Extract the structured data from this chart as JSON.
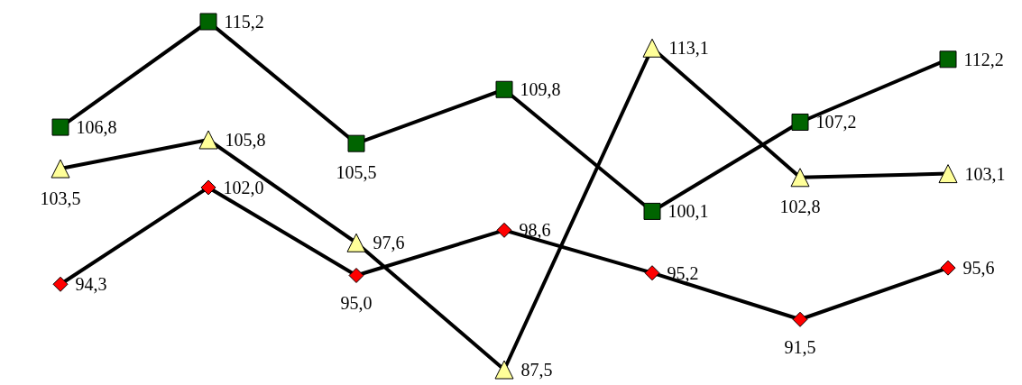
{
  "chart_data": {
    "type": "line",
    "categories": [
      null,
      null,
      null,
      null,
      null,
      null,
      null
    ],
    "line_style": "solid",
    "grid": false,
    "series": [
      {
        "color": "#000000",
        "marker": "square",
        "colors": [
          "#006400",
          "#006400",
          "#006400",
          "#006400",
          "#006400",
          "#006400",
          "#006400"
        ],
        "values": [
          106.8,
          115.2,
          105.5,
          109.8,
          100.1,
          107.2,
          112.2
        ],
        "value_labels": [
          "106,8",
          "115,2",
          "105,5",
          "109,8",
          "100,1",
          "107,2",
          "112,2"
        ]
      },
      {
        "color": "#000000",
        "marker": "triangle",
        "colors": [
          "#ffff99",
          "#ffff99",
          "#ffff99",
          "#ffff99",
          "#ffff99",
          "#ffff99",
          "#ffff99"
        ],
        "values": [
          103.5,
          105.8,
          97.6,
          87.5,
          113.1,
          102.8,
          103.1
        ],
        "value_labels": [
          "103,5",
          "105,8",
          "97,6",
          "87,5",
          "113,1",
          "102,8",
          "103,1"
        ]
      },
      {
        "color": "#000000",
        "marker": "diamond",
        "colors": [
          "#ff0000",
          "#ff0000",
          "#ff0000",
          "#ff0000",
          "#ff0000",
          "#ff0000",
          "#ff0000"
        ],
        "values": [
          94.3,
          102.0,
          95.0,
          98.6,
          95.2,
          91.5,
          95.6
        ],
        "value_labels": [
          "94,3",
          "102,0",
          "95,0",
          "98,6",
          "95,2",
          "91,5",
          "95,6"
        ]
      }
    ]
  }
}
